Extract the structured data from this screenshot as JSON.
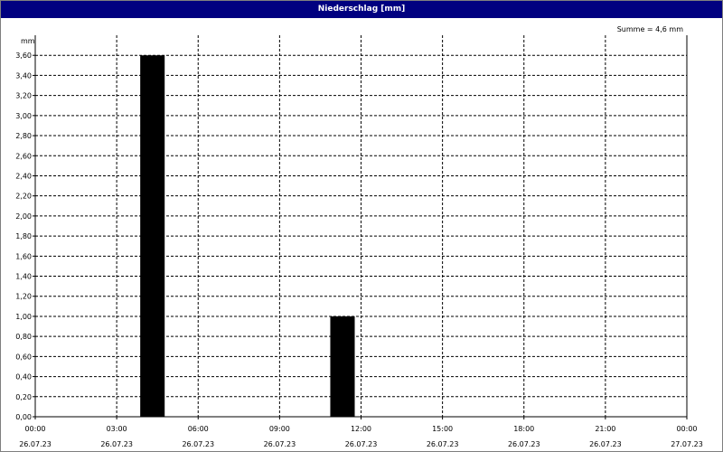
{
  "window": {
    "title": "Niederschlag [mm]"
  },
  "chart_data": {
    "type": "bar",
    "title": "Niederschlag [mm]",
    "ylabel": "mm",
    "annotation": "Summe = 4,6 mm",
    "ylim": [
      0,
      3.8
    ],
    "yticks": [
      "0,00",
      "0,20",
      "0,40",
      "0,60",
      "0,80",
      "1,00",
      "1,20",
      "1,40",
      "1,60",
      "1,80",
      "2,00",
      "2,20",
      "2,40",
      "2,60",
      "2,80",
      "3,00",
      "3,20",
      "3,40",
      "3,60"
    ],
    "xlim": [
      0,
      24
    ],
    "xticks": [
      {
        "time": "00:00",
        "date": "26.07.23"
      },
      {
        "time": "03:00",
        "date": "26.07.23"
      },
      {
        "time": "06:00",
        "date": "26.07.23"
      },
      {
        "time": "09:00",
        "date": "26.07.23"
      },
      {
        "time": "12:00",
        "date": "26.07.23"
      },
      {
        "time": "15:00",
        "date": "26.07.23"
      },
      {
        "time": "18:00",
        "date": "26.07.23"
      },
      {
        "time": "21:00",
        "date": "26.07.23"
      },
      {
        "time": "00:00",
        "date": "27.07.23"
      }
    ],
    "bars": [
      {
        "start_hour": 4,
        "end_hour": 5,
        "value": 3.6
      },
      {
        "start_hour": 11,
        "end_hour": 12,
        "value": 1.0
      }
    ],
    "grid": true,
    "bar_color": "#000000"
  }
}
